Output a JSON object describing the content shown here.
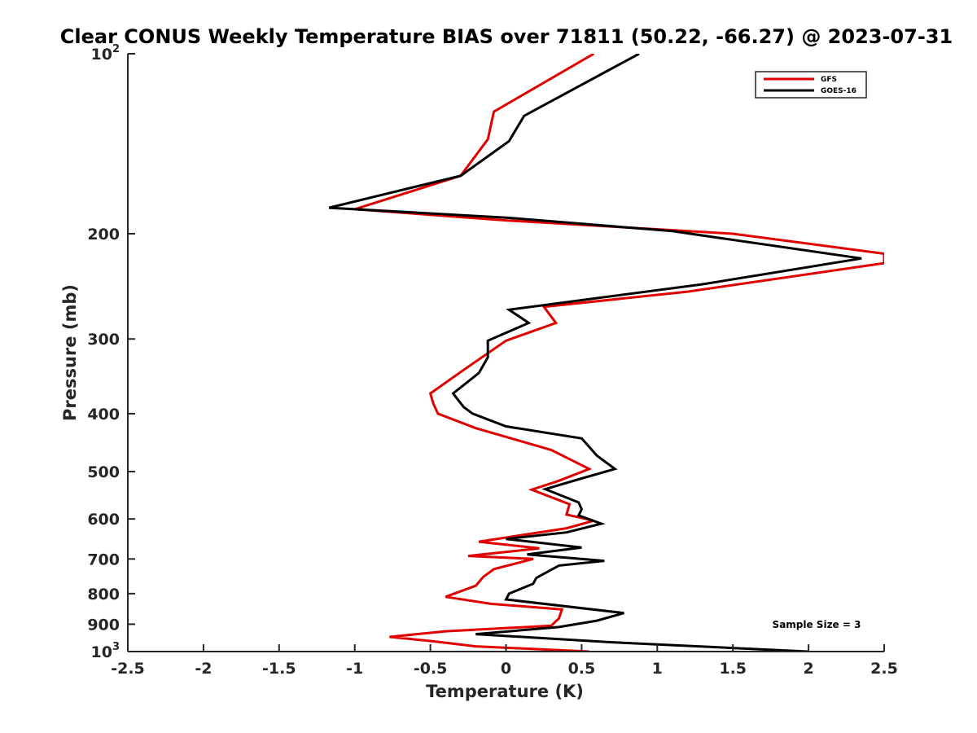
{
  "chart_data": {
    "type": "line",
    "title": "Clear CONUS Weekly Temperature BIAS over 71811 (50.22, -66.27) @ 2023-07-31",
    "xlabel": "Temperature (K)",
    "ylabel": "Pressure (mb)",
    "xlim": [
      -2.5,
      2.5
    ],
    "ylim": [
      100,
      1000
    ],
    "y_scale": "log",
    "y_direction": "reversed",
    "grid": false,
    "x_ticks": [
      "-2.5",
      "-2",
      "-1.5",
      "-1",
      "-0.5",
      "0",
      "0.5",
      "1",
      "1.5",
      "2",
      "2.5"
    ],
    "x_tick_values": [
      -2.5,
      -2,
      -1.5,
      -1,
      -0.5,
      0,
      0.5,
      1,
      1.5,
      2,
      2.5
    ],
    "y_ticks": [
      {
        "value": 100,
        "base": "10",
        "exp": "2"
      },
      {
        "value": 200,
        "label": "200"
      },
      {
        "value": 300,
        "label": "300"
      },
      {
        "value": 400,
        "label": "400"
      },
      {
        "value": 500,
        "label": "500"
      },
      {
        "value": 600,
        "label": "600"
      },
      {
        "value": 700,
        "label": "700"
      },
      {
        "value": 800,
        "label": "800"
      },
      {
        "value": 900,
        "label": "900"
      },
      {
        "value": 1000,
        "base": "10",
        "exp": "3"
      }
    ],
    "legend": {
      "position": "top-right"
    },
    "annotation": "Sample Size = 3",
    "series": [
      {
        "name": "GFS",
        "color": "#e00000",
        "points": [
          {
            "x": 0.58,
            "p": 100
          },
          {
            "x": -0.08,
            "p": 125
          },
          {
            "x": -0.12,
            "p": 139
          },
          {
            "x": -0.3,
            "p": 160
          },
          {
            "x": -1.0,
            "p": 182
          },
          {
            "x": 0.0,
            "p": 190
          },
          {
            "x": 1.5,
            "p": 200
          },
          {
            "x": 2.5,
            "p": 216
          },
          {
            "x": 2.5,
            "p": 224
          },
          {
            "x": 1.2,
            "p": 250
          },
          {
            "x": 0.25,
            "p": 265
          },
          {
            "x": 0.33,
            "p": 282
          },
          {
            "x": 0.0,
            "p": 302
          },
          {
            "x": -0.28,
            "p": 338
          },
          {
            "x": -0.5,
            "p": 370
          },
          {
            "x": -0.48,
            "p": 385
          },
          {
            "x": -0.45,
            "p": 400
          },
          {
            "x": -0.2,
            "p": 423
          },
          {
            "x": 0.3,
            "p": 460
          },
          {
            "x": 0.55,
            "p": 495
          },
          {
            "x": 0.35,
            "p": 518
          },
          {
            "x": 0.17,
            "p": 536
          },
          {
            "x": 0.42,
            "p": 567
          },
          {
            "x": 0.4,
            "p": 590
          },
          {
            "x": 0.58,
            "p": 604
          },
          {
            "x": 0.4,
            "p": 622
          },
          {
            "x": -0.18,
            "p": 655
          },
          {
            "x": 0.22,
            "p": 672
          },
          {
            "x": -0.25,
            "p": 692
          },
          {
            "x": 0.18,
            "p": 700
          },
          {
            "x": -0.08,
            "p": 728
          },
          {
            "x": -0.15,
            "p": 750
          },
          {
            "x": -0.2,
            "p": 776
          },
          {
            "x": -0.4,
            "p": 810
          },
          {
            "x": -0.1,
            "p": 832
          },
          {
            "x": 0.37,
            "p": 850
          },
          {
            "x": 0.35,
            "p": 880
          },
          {
            "x": 0.3,
            "p": 905
          },
          {
            "x": -0.4,
            "p": 925
          },
          {
            "x": -0.77,
            "p": 945
          },
          {
            "x": -0.5,
            "p": 960
          },
          {
            "x": -0.2,
            "p": 980
          },
          {
            "x": 0.55,
            "p": 1000
          }
        ]
      },
      {
        "name": "GOES-16",
        "color": "#000000",
        "points": [
          {
            "x": 0.88,
            "p": 100
          },
          {
            "x": 0.12,
            "p": 127
          },
          {
            "x": 0.02,
            "p": 140
          },
          {
            "x": -0.3,
            "p": 160
          },
          {
            "x": -1.17,
            "p": 181
          },
          {
            "x": 0.0,
            "p": 188
          },
          {
            "x": 1.1,
            "p": 198
          },
          {
            "x": 2.35,
            "p": 220
          },
          {
            "x": 1.3,
            "p": 243
          },
          {
            "x": 0.02,
            "p": 268
          },
          {
            "x": 0.15,
            "p": 282
          },
          {
            "x": -0.12,
            "p": 302
          },
          {
            "x": -0.12,
            "p": 322
          },
          {
            "x": -0.18,
            "p": 342
          },
          {
            "x": -0.35,
            "p": 370
          },
          {
            "x": -0.28,
            "p": 390
          },
          {
            "x": -0.22,
            "p": 400
          },
          {
            "x": 0.0,
            "p": 420
          },
          {
            "x": 0.5,
            "p": 440
          },
          {
            "x": 0.6,
            "p": 470
          },
          {
            "x": 0.72,
            "p": 495
          },
          {
            "x": 0.48,
            "p": 515
          },
          {
            "x": 0.26,
            "p": 535
          },
          {
            "x": 0.48,
            "p": 563
          },
          {
            "x": 0.5,
            "p": 578
          },
          {
            "x": 0.48,
            "p": 592
          },
          {
            "x": 0.63,
            "p": 611
          },
          {
            "x": 0.4,
            "p": 632
          },
          {
            "x": 0.0,
            "p": 648
          },
          {
            "x": 0.5,
            "p": 670
          },
          {
            "x": 0.14,
            "p": 688
          },
          {
            "x": 0.65,
            "p": 705
          },
          {
            "x": 0.35,
            "p": 718
          },
          {
            "x": 0.2,
            "p": 753
          },
          {
            "x": 0.18,
            "p": 770
          },
          {
            "x": 0.02,
            "p": 800
          },
          {
            "x": 0.0,
            "p": 818
          },
          {
            "x": 0.78,
            "p": 862
          },
          {
            "x": 0.6,
            "p": 888
          },
          {
            "x": 0.35,
            "p": 910
          },
          {
            "x": -0.2,
            "p": 935
          },
          {
            "x": 0.7,
            "p": 965
          },
          {
            "x": 2.0,
            "p": 1000
          }
        ]
      }
    ]
  }
}
